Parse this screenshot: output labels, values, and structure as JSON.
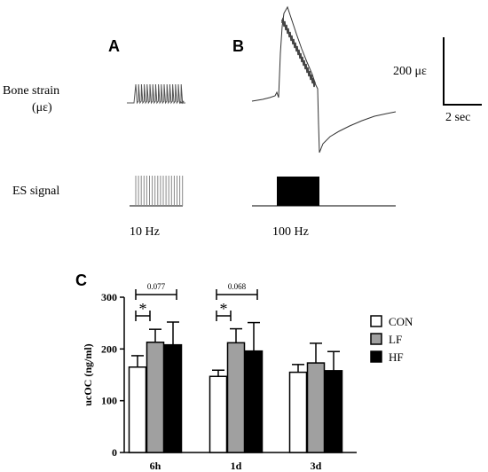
{
  "panels": {
    "a": "A",
    "b": "B",
    "c": "C"
  },
  "labels": {
    "bone_strain": "Bone strain",
    "bone_strain_unit": "(με)",
    "es_signal": "ES signal",
    "freq_a": "10 Hz",
    "freq_b": "100 Hz",
    "scale_strain": "200 με",
    "scale_time": "2 sec"
  },
  "chart_data": {
    "type": "bar",
    "ylabel": "ucOC (ng/ml)",
    "ylim": [
      0,
      300
    ],
    "yticks": [
      0,
      100,
      200,
      300
    ],
    "categories": [
      "6h",
      "1d",
      "3d"
    ],
    "series": [
      {
        "name": "CON",
        "color": "#ffffff",
        "values": [
          165,
          147,
          155
        ],
        "errors": [
          22,
          12,
          15
        ]
      },
      {
        "name": "LF",
        "color": "#a0a0a0",
        "values": [
          213,
          212,
          173
        ],
        "errors": [
          25,
          27,
          38
        ]
      },
      {
        "name": "HF",
        "color": "#000000",
        "values": [
          208,
          196,
          158
        ],
        "errors": [
          44,
          55,
          37
        ]
      }
    ],
    "annotations": [
      {
        "text": "0.077",
        "category": "6h"
      },
      {
        "text": "*",
        "category": "6h"
      },
      {
        "text": "0.068",
        "category": "1d"
      },
      {
        "text": "*",
        "category": "1d"
      }
    ],
    "legend_position": "right"
  }
}
